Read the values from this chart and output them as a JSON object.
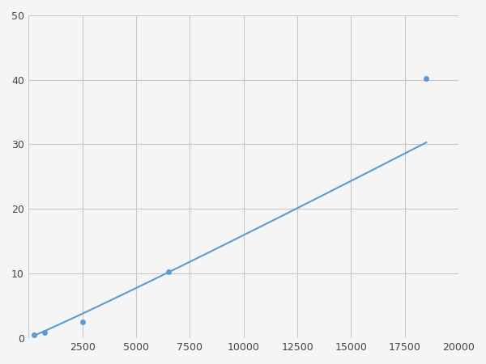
{
  "x_points": [
    250,
    750,
    2500,
    6500,
    18500
  ],
  "y_points": [
    0.5,
    0.8,
    2.5,
    10.2,
    40.2
  ],
  "line_color": "#5b9bd5",
  "marker_color": "#5b9bd5",
  "marker_size": 5,
  "line_width": 1.5,
  "xlim": [
    0,
    20000
  ],
  "ylim": [
    0,
    50
  ],
  "xticks": [
    0,
    2500,
    5000,
    7500,
    10000,
    12500,
    15000,
    17500,
    20000
  ],
  "yticks": [
    0,
    10,
    20,
    30,
    40,
    50
  ],
  "grid_color": "#c8c8c8",
  "background_color": "#f5f5f5",
  "fig_width": 6.0,
  "fig_height": 4.5,
  "dpi": 100
}
